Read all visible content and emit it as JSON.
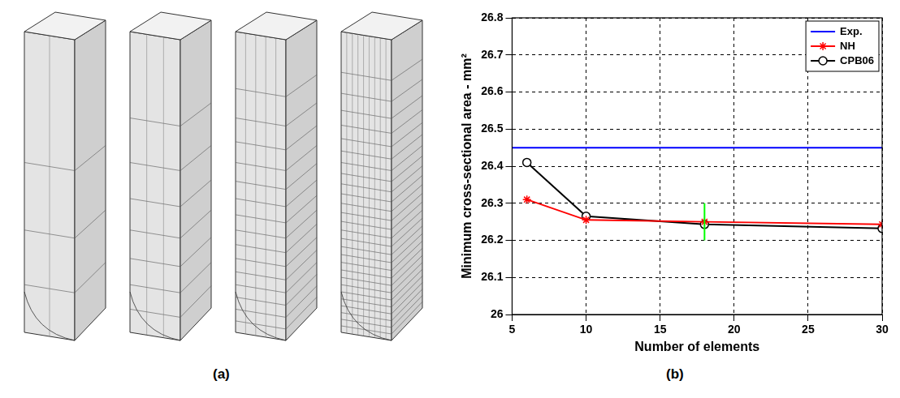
{
  "panel_a_label": "(a)",
  "chart_data": {
    "type": "line",
    "panel_label": "(b)",
    "x_label": "Number of elements",
    "y_label": "Minimum cross-sectional area - mm²",
    "xlim": [
      5,
      30
    ],
    "xticks": [
      5,
      10,
      15,
      20,
      25,
      30
    ],
    "ylim": [
      26,
      26.8
    ],
    "yticks": [
      26,
      26.1,
      26.2,
      26.3,
      26.4,
      26.5,
      26.6,
      26.7,
      26.8
    ],
    "grid": true,
    "legend": "top-right",
    "series": [
      {
        "name": "Exp.",
        "color": "#0000ff",
        "x": [
          5,
          30
        ],
        "values": [
          26.45,
          26.45
        ],
        "marker": "none"
      },
      {
        "name": "NH",
        "color": "#ff0000",
        "x": [
          6,
          10,
          18,
          30
        ],
        "values": [
          26.31,
          26.255,
          26.25,
          26.243
        ],
        "marker": "star"
      },
      {
        "name": "CPB06",
        "color": "#000000",
        "x": [
          6,
          10,
          18,
          30
        ],
        "values": [
          26.41,
          26.265,
          26.243,
          26.232
        ],
        "marker": "circle"
      }
    ],
    "vertical_marker": {
      "x": 18,
      "y": [
        26.2,
        26.3
      ],
      "color": "#00ff00"
    }
  }
}
